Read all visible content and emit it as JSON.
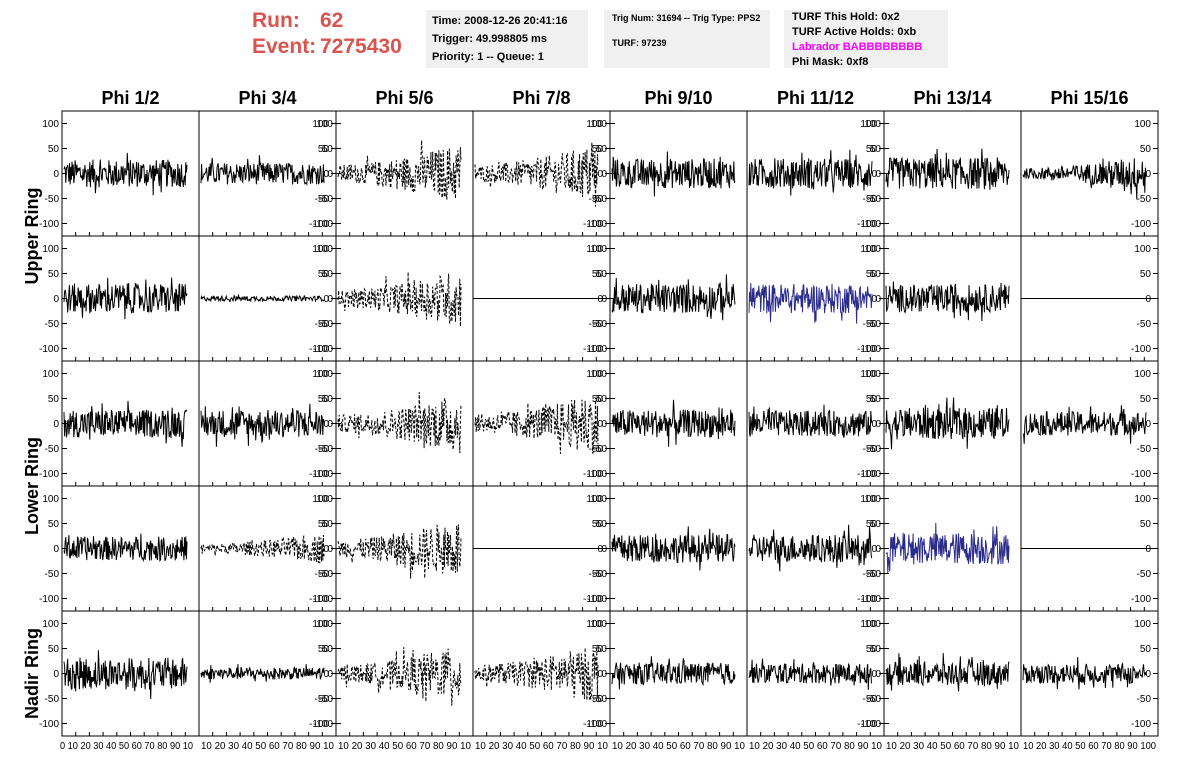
{
  "header": {
    "run_label": "Run:",
    "run_value": "62",
    "event_label": "Event:",
    "event_value": "7275430"
  },
  "info": {
    "time": "Time: 2008-12-26 20:41:16",
    "trigger": "Trigger: 49.998805 ms",
    "priority": "Priority: 1 -- Queue: 1",
    "trig_num": "Trig Num: 31694 -- Trig Type: PPS2",
    "turf": "TURF: 97239",
    "turf_hold": "TURF This Hold: 0x2",
    "turf_active": "TURF Active Holds: 0xb",
    "labrador": "Labrador BABBBBBBBB",
    "phi_mask": "Phi Mask: 0xf8"
  },
  "colors": {
    "header_red": "#d9534f",
    "labrador_magenta": "#ff00ff",
    "trace_black": "#000000",
    "trace_blue": "#2b2b8c",
    "panel_bg": "#f0f0f0"
  },
  "chart_data": {
    "type": "line",
    "columns": [
      "Phi 1/2",
      "Phi 3/4",
      "Phi 5/6",
      "Phi 7/8",
      "Phi 9/10",
      "Phi 11/12",
      "Phi 13/14",
      "Phi 15/16"
    ],
    "rows": [
      "Upper Ring",
      "",
      "Lower Ring",
      "",
      "Nadir Ring"
    ],
    "row_labels": [
      {
        "text": "Upper Ring",
        "rows": [
          0,
          1
        ]
      },
      {
        "text": "Lower Ring",
        "rows": [
          2,
          3
        ]
      },
      {
        "text": "Nadir Ring",
        "rows": [
          4
        ]
      }
    ],
    "ylim": [
      -125,
      125
    ],
    "y_ticks": [
      -100,
      -50,
      0,
      50,
      100
    ],
    "xlim": [
      0,
      100
    ],
    "x_ticks_first": [
      "0",
      "10",
      "20",
      "30",
      "40",
      "50",
      "60",
      "70",
      "80",
      "90",
      "100"
    ],
    "x_ticks_other": [
      "10",
      "20",
      "30",
      "40",
      "50",
      "60",
      "70",
      "80",
      "90",
      "100"
    ],
    "x_ticks_text": [
      "0 10 20 30 40 50 60 70 80 90 10",
      "10 20 30 40 50 60 70 80 90 10",
      "10 20 30 40 50 60 70 80 90 10",
      "10 20 30 40 50 60 70 80 90 10",
      "10 20 30 40 50 60 70 80 90 10",
      "10 20 30 40 50 60 70 80 90 10",
      "10 20 30 40 50 60 70 80 90 10",
      "10 20 30 40 50 60 70 80 90 100"
    ],
    "y_axis_side": "left on odd columns, right on even columns",
    "grid": false,
    "legend": "none",
    "panels": [
      [
        {
          "amp": 28,
          "style": "solid"
        },
        {
          "amp": 22,
          "style": "solid"
        },
        {
          "amp": 50,
          "style": "dashed",
          "grow": true
        },
        {
          "amp": 48,
          "style": "dashed",
          "grow": true
        },
        {
          "amp": 30,
          "style": "solid"
        },
        {
          "amp": 30,
          "style": "solid"
        },
        {
          "amp": 32,
          "style": "solid"
        },
        {
          "amp": 30,
          "style": "solid",
          "grow": true
        }
      ],
      [
        {
          "amp": 30,
          "style": "solid"
        },
        {
          "amp": 5,
          "style": "solid"
        },
        {
          "amp": 48,
          "style": "dashed",
          "grow": true
        },
        {
          "amp": 0,
          "style": "flat"
        },
        {
          "amp": 30,
          "style": "solid"
        },
        {
          "amp": 30,
          "style": "solid",
          "color": "blue"
        },
        {
          "amp": 28,
          "style": "solid"
        },
        {
          "amp": 0,
          "style": "flat"
        }
      ],
      [
        {
          "amp": 28,
          "style": "solid"
        },
        {
          "amp": 28,
          "style": "solid"
        },
        {
          "amp": 50,
          "style": "dashed",
          "grow": true
        },
        {
          "amp": 50,
          "style": "dashed",
          "grow": true
        },
        {
          "amp": 28,
          "style": "solid"
        },
        {
          "amp": 26,
          "style": "solid"
        },
        {
          "amp": 32,
          "style": "solid"
        },
        {
          "amp": 24,
          "style": "solid"
        }
      ],
      [
        {
          "amp": 24,
          "style": "solid"
        },
        {
          "amp": 25,
          "style": "dashed",
          "grow": true
        },
        {
          "amp": 50,
          "style": "dashed",
          "grow": true
        },
        {
          "amp": 0,
          "style": "flat"
        },
        {
          "amp": 28,
          "style": "solid"
        },
        {
          "amp": 28,
          "style": "solid"
        },
        {
          "amp": 32,
          "style": "solid",
          "color": "blue"
        },
        {
          "amp": 0,
          "style": "flat"
        }
      ],
      [
        {
          "amp": 32,
          "style": "solid"
        },
        {
          "amp": 12,
          "style": "solid"
        },
        {
          "amp": 46,
          "style": "dashed",
          "grow": true
        },
        {
          "amp": 48,
          "style": "dashed",
          "grow": true
        },
        {
          "amp": 22,
          "style": "solid"
        },
        {
          "amp": 20,
          "style": "solid"
        },
        {
          "amp": 24,
          "style": "solid"
        },
        {
          "amp": 20,
          "style": "solid"
        }
      ]
    ]
  }
}
